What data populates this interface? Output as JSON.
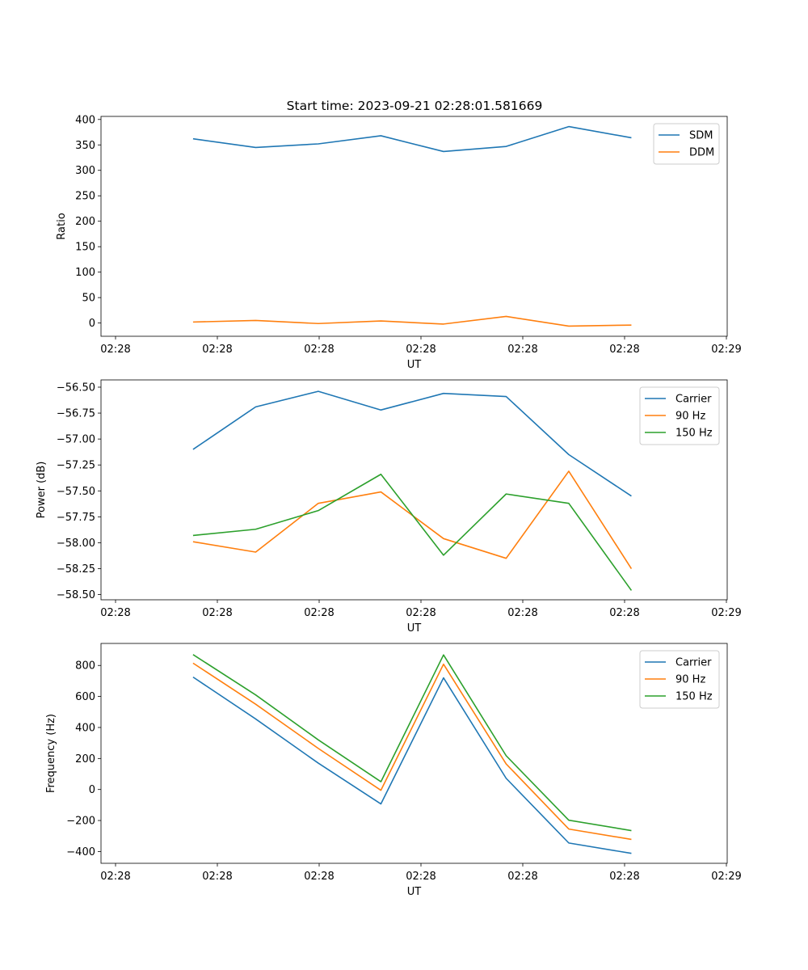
{
  "title": "Start time: 2023-09-21 02:28:01.581669",
  "colors": {
    "blue": "#1f77b4",
    "orange": "#ff7f0e",
    "green": "#2ca02c"
  },
  "chart_data": [
    {
      "type": "line",
      "xlabel": "UT",
      "ylabel": "Ratio",
      "x_tick_labels": [
        "02:28",
        "02:28",
        "02:28",
        "02:28",
        "02:28",
        "02:28",
        "02:29"
      ],
      "y_ticks": [
        0,
        50,
        100,
        150,
        200,
        250,
        300,
        350,
        400
      ],
      "y_tick_labels": [
        "0",
        "50",
        "100",
        "150",
        "200",
        "250",
        "300",
        "350",
        "400"
      ],
      "ylim": [
        -26,
        406
      ],
      "x": [
        1,
        2,
        3,
        4,
        5,
        6,
        7,
        8
      ],
      "xlim": [
        -0.47,
        9.53
      ],
      "legend": "top-right",
      "series": [
        {
          "name": "SDM",
          "color": "#1f77b4",
          "values": [
            362,
            345,
            352,
            368,
            337,
            347,
            386,
            364
          ]
        },
        {
          "name": "DDM",
          "color": "#ff7f0e",
          "values": [
            2,
            5,
            -1,
            4,
            -2,
            13,
            -6,
            -4
          ]
        }
      ]
    },
    {
      "type": "line",
      "xlabel": "UT",
      "ylabel": "Power (dB)",
      "x_tick_labels": [
        "02:28",
        "02:28",
        "02:28",
        "02:28",
        "02:28",
        "02:28",
        "02:29"
      ],
      "y_ticks": [
        -58.5,
        -58.25,
        -58.0,
        -57.75,
        -57.5,
        -57.25,
        -57.0,
        -56.75,
        -56.5
      ],
      "y_tick_labels": [
        "−58.50",
        "−58.25",
        "−58.00",
        "−57.75",
        "−57.50",
        "−57.25",
        "−57.00",
        "−56.75",
        "−56.50"
      ],
      "ylim": [
        -58.55,
        -56.43
      ],
      "x": [
        1,
        2,
        3,
        4,
        5,
        6,
        7,
        8
      ],
      "xlim": [
        -0.47,
        9.53
      ],
      "legend": "top-right",
      "series": [
        {
          "name": "Carrier",
          "color": "#1f77b4",
          "values": [
            -57.1,
            -56.69,
            -56.54,
            -56.72,
            -56.56,
            -56.59,
            -57.15,
            -57.55
          ]
        },
        {
          "name": "90 Hz",
          "color": "#ff7f0e",
          "values": [
            -57.99,
            -58.09,
            -57.62,
            -57.51,
            -57.96,
            -58.15,
            -57.31,
            -58.25
          ]
        },
        {
          "name": "150 Hz",
          "color": "#2ca02c",
          "values": [
            -57.93,
            -57.87,
            -57.69,
            -57.34,
            -58.12,
            -57.53,
            -57.62,
            -58.46
          ]
        }
      ]
    },
    {
      "type": "line",
      "xlabel": "UT",
      "ylabel": "Frequency (Hz)",
      "x_tick_labels": [
        "02:28",
        "02:28",
        "02:28",
        "02:28",
        "02:28",
        "02:28",
        "02:29"
      ],
      "y_ticks": [
        -400,
        -200,
        0,
        200,
        400,
        600,
        800
      ],
      "y_tick_labels": [
        "−400",
        "−200",
        "0",
        "200",
        "400",
        "600",
        "800"
      ],
      "ylim": [
        -476,
        942
      ],
      "x": [
        1,
        2,
        3,
        4,
        5,
        6,
        7,
        8
      ],
      "xlim": [
        -0.47,
        9.53
      ],
      "legend": "top-right",
      "series": [
        {
          "name": "Carrier",
          "color": "#1f77b4",
          "values": [
            725,
            455,
            170,
            -93,
            720,
            72,
            -345,
            -412
          ]
        },
        {
          "name": "90 Hz",
          "color": "#ff7f0e",
          "values": [
            815,
            550,
            265,
            -5,
            808,
            165,
            -255,
            -322
          ]
        },
        {
          "name": "150 Hz",
          "color": "#2ca02c",
          "values": [
            870,
            610,
            320,
            50,
            868,
            218,
            -198,
            -265
          ]
        }
      ]
    }
  ]
}
